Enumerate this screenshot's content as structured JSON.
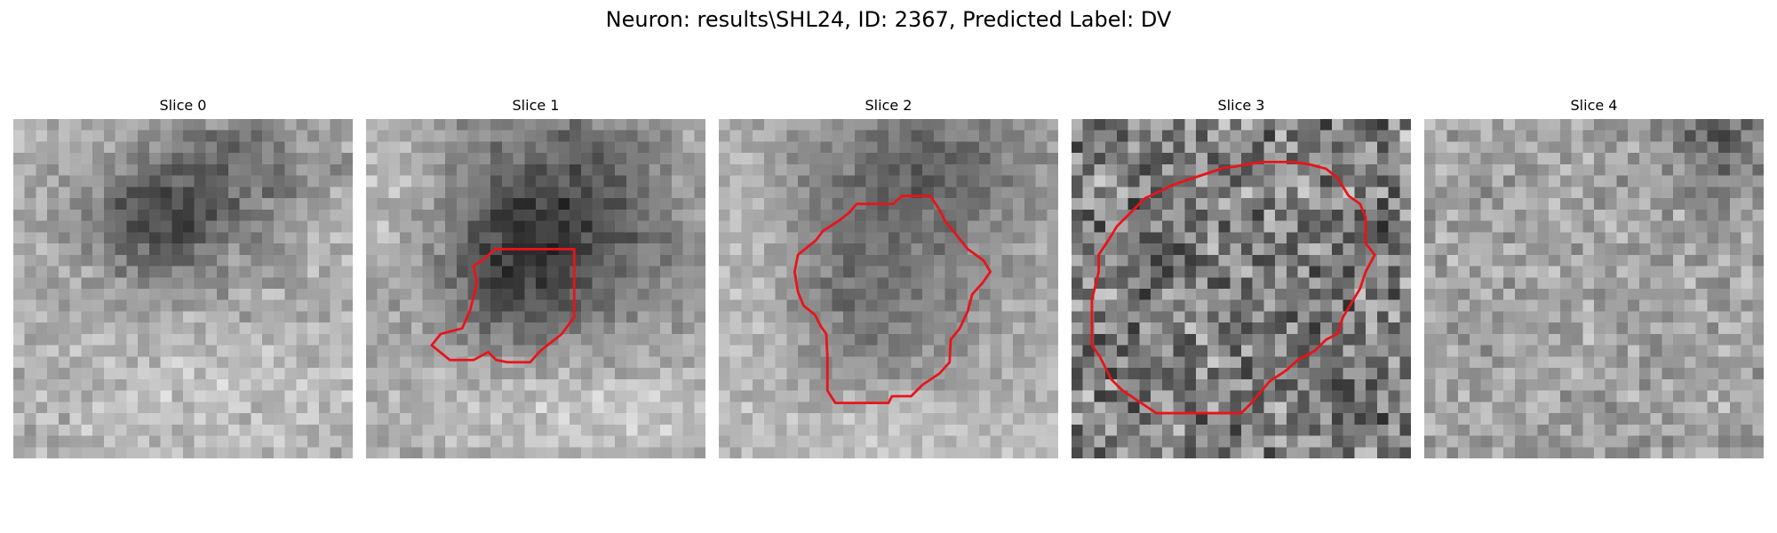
{
  "figure": {
    "title": "Neuron: results\\SHL24, ID: 2367, Predicted Label: DV"
  },
  "panels": [
    {
      "title": "Slice 0",
      "has_contour": false
    },
    {
      "title": "Slice 1",
      "has_contour": true
    },
    {
      "title": "Slice 2",
      "has_contour": true
    },
    {
      "title": "Slice 3",
      "has_contour": true
    },
    {
      "title": "Slice 4",
      "has_contour": false
    }
  ],
  "colors": {
    "contour": "#e8141b",
    "background": "#ffffff"
  }
}
